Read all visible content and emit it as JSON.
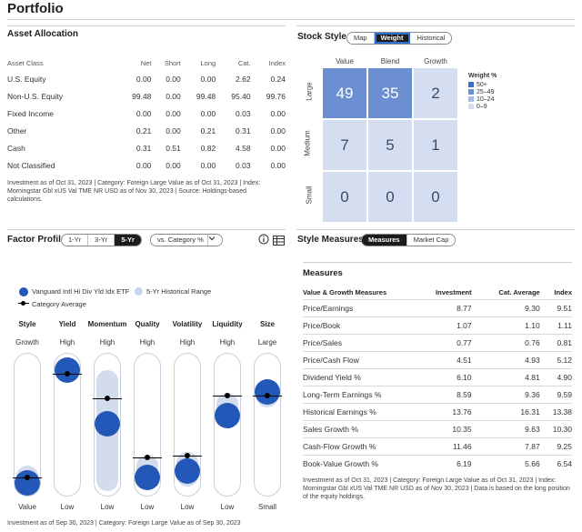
{
  "page_title": "Portfolio",
  "asset_allocation": {
    "title": "Asset Allocation",
    "columns": [
      "Asset Class",
      "Net",
      "Short",
      "Long",
      "Cat.",
      "Index"
    ],
    "rows": [
      [
        "U.S. Equity",
        "0.00",
        "0.00",
        "0.00",
        "2.62",
        "0.24"
      ],
      [
        "Non-U.S. Equity",
        "99.48",
        "0.00",
        "99.48",
        "95.40",
        "99.76"
      ],
      [
        "Fixed Income",
        "0.00",
        "0.00",
        "0.00",
        "0.03",
        "0.00"
      ],
      [
        "Other",
        "0.21",
        "0.00",
        "0.21",
        "0.31",
        "0.00"
      ],
      [
        "Cash",
        "0.31",
        "0.51",
        "0.82",
        "4.58",
        "0.00"
      ],
      [
        "Not Classified",
        "0.00",
        "0.00",
        "0.00",
        "0.03",
        "0.00"
      ]
    ],
    "note": "Investment as of Oct 31, 2023 | Category: Foreign Large Value as of Oct 31, 2023 | Index: Morningstar Gbl xUS Val TME NR USD as of Nov 30, 2023 | Source: Holdings-based calculations."
  },
  "stock_style": {
    "title": "Stock Style",
    "tabs": [
      "Map",
      "Weight",
      "Historical"
    ],
    "active_tab": "Weight",
    "col_headers": [
      "Value",
      "Blend",
      "Growth"
    ],
    "row_headers": [
      "Large",
      "Medium",
      "Small"
    ],
    "cells": [
      [
        "49",
        "35",
        "2"
      ],
      [
        "7",
        "5",
        "1"
      ],
      [
        "0",
        "0",
        "0"
      ]
    ],
    "legend_title": "Weight %",
    "legend": [
      {
        "label": "50+",
        "color": "#3e6fc2"
      },
      {
        "label": "25–49",
        "color": "#6b8fd1"
      },
      {
        "label": "10–24",
        "color": "#a7bce3"
      },
      {
        "label": "0–9",
        "color": "#d5def0"
      }
    ]
  },
  "factor_profile": {
    "title": "Factor Profile",
    "periods": [
      "1-Yr",
      "3-Yr",
      "5-Yr"
    ],
    "active_period": "5-Yr",
    "dropdown": "vs. Category %",
    "legend_fund": "Vanguard Intl Hi Div Yld Idx ETF",
    "legend_range": "5-Yr Historical Range",
    "legend_avg": "Category Average",
    "factors": [
      {
        "name": "Style",
        "top": "Growth",
        "bottom": "Value",
        "fund": 0.08,
        "avg": 0.12,
        "range": [
          0.02,
          0.2
        ]
      },
      {
        "name": "Yield",
        "top": "High",
        "bottom": "Low",
        "fund": 0.88,
        "avg": 0.86,
        "range": [
          0.8,
          0.97
        ]
      },
      {
        "name": "Momentum",
        "top": "High",
        "bottom": "Low",
        "fund": 0.5,
        "avg": 0.68,
        "range": [
          0.02,
          0.88
        ]
      },
      {
        "name": "Quality",
        "top": "High",
        "bottom": "Low",
        "fund": 0.12,
        "avg": 0.26,
        "range": [
          0.06,
          0.28
        ]
      },
      {
        "name": "Volatility",
        "top": "High",
        "bottom": "Low",
        "fund": 0.16,
        "avg": 0.27,
        "range": [
          0.05,
          0.3
        ]
      },
      {
        "name": "Liquidity",
        "top": "High",
        "bottom": "Low",
        "fund": 0.56,
        "avg": 0.7,
        "range": [
          0.48,
          0.72
        ]
      },
      {
        "name": "Size",
        "top": "Large",
        "bottom": "Small",
        "fund": 0.73,
        "avg": 0.7,
        "range": [
          0.62,
          0.82
        ]
      }
    ],
    "note": "Investment as of Sep 30, 2023 | Category: Foreign Large Value as of Sep 30, 2023"
  },
  "style_measures": {
    "title": "Style Measures",
    "tabs": [
      "Measures",
      "Market Cap"
    ],
    "active_tab": "Measures",
    "subtitle": "Measures",
    "columns": [
      "Value & Growth Measures",
      "Investment",
      "Cat. Average",
      "Index"
    ],
    "rows": [
      [
        "Price/Earnings",
        "8.77",
        "9.30",
        "9.51"
      ],
      [
        "Price/Book",
        "1.07",
        "1.10",
        "1.11"
      ],
      [
        "Price/Sales",
        "0.77",
        "0.76",
        "0.81"
      ],
      [
        "Price/Cash Flow",
        "4.51",
        "4.93",
        "5.12"
      ],
      [
        "Dividend Yield %",
        "6.10",
        "4.81",
        "4.90"
      ],
      [
        "Long-Term Earnings %",
        "8.59",
        "9.36",
        "9.59"
      ],
      [
        "Historical Earnings %",
        "13.76",
        "16.31",
        "13.38"
      ],
      [
        "Sales Growth %",
        "10.35",
        "9.63",
        "10.30"
      ],
      [
        "Cash-Flow Growth %",
        "11.46",
        "7.87",
        "9.25"
      ],
      [
        "Book-Value Growth %",
        "6.19",
        "5.66",
        "6.54"
      ]
    ],
    "note": "Investment as of Oct 31, 2023 | Category: Foreign Large Value as of Oct 31, 2023 | Index: Morningstar Gbl xUS Val TME NR USD as of Nov 30, 2023 | Data is based on the long position of the equity holdings."
  }
}
